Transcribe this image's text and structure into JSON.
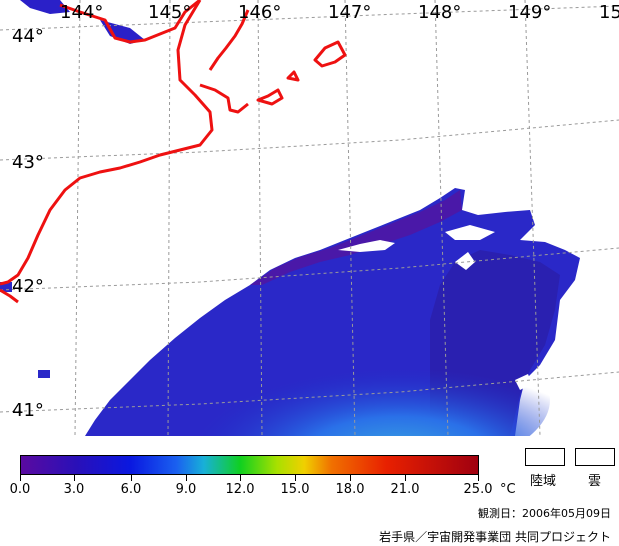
{
  "map": {
    "lon_labels": [
      "144°",
      "145°",
      "146°",
      "147°",
      "148°",
      "149°",
      "15"
    ],
    "lat_labels": [
      "44°",
      "43°",
      "42°",
      "41°"
    ],
    "coast_color": "#ee1111",
    "land_color": "#ffffff",
    "grid_color": "#999999"
  },
  "legend": {
    "ticks": [
      "0.0",
      "3.0",
      "6.0",
      "9.0",
      "12.0",
      "15.0",
      "18.0",
      "21.0",
      "25.0"
    ],
    "unit": "°C",
    "land_label": "陸域",
    "cloud_label": "雲"
  },
  "observation_date": "観測日：2006年05月09日",
  "credit": "岩手県／宇宙開発事業団 共同プロジェクト"
}
